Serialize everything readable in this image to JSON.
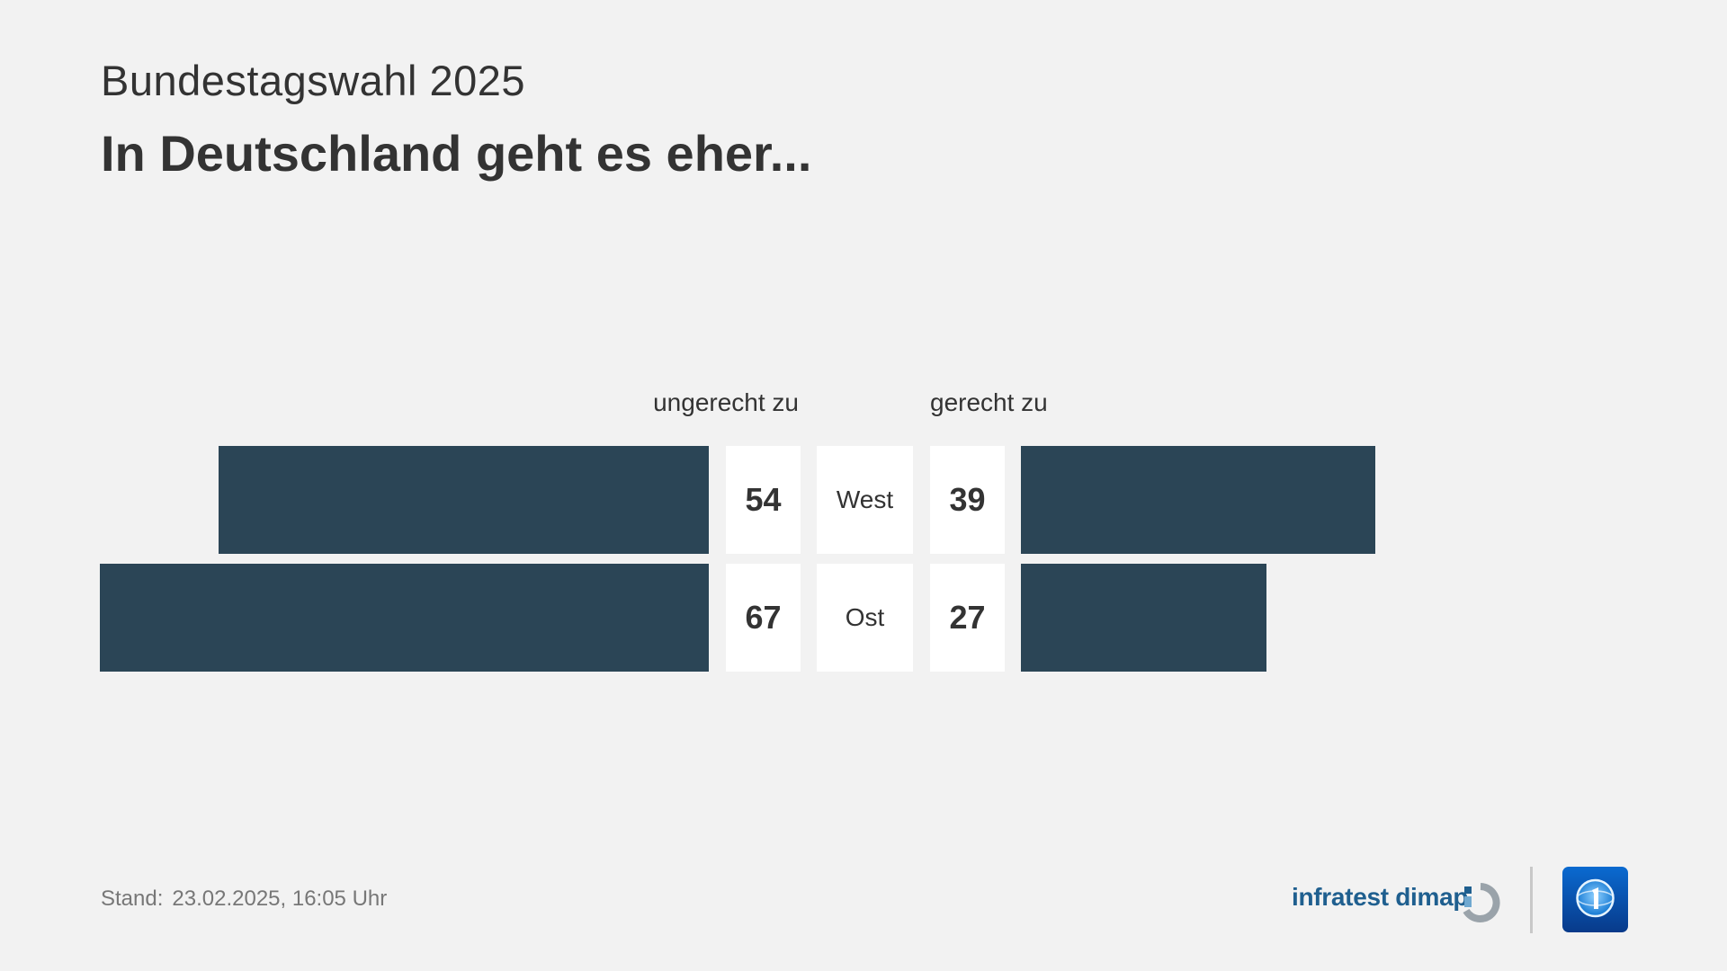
{
  "header": {
    "supertitle": "Bundestagswahl 2025",
    "title": "In Deutschland geht es eher..."
  },
  "chart_data": {
    "type": "bar",
    "orientation": "horizontal-diverging",
    "columns": {
      "left": "ungerecht zu",
      "right": "gerecht zu"
    },
    "categories": [
      "West",
      "Ost"
    ],
    "series": [
      {
        "name": "ungerecht zu",
        "values": [
          54,
          67
        ]
      },
      {
        "name": "gerecht zu",
        "values": [
          39,
          27
        ]
      }
    ],
    "bar_color": "#2b4556"
  },
  "footer": {
    "stand_label": "Stand:",
    "stand_value": "23.02.2025, 16:05 Uhr",
    "brand": "infratest dimap",
    "brand_color": "#1f5f8f",
    "brand_icon": "infratest-dimap-logo-icon",
    "broadcaster_icon": "tagesschau-logo-icon"
  }
}
